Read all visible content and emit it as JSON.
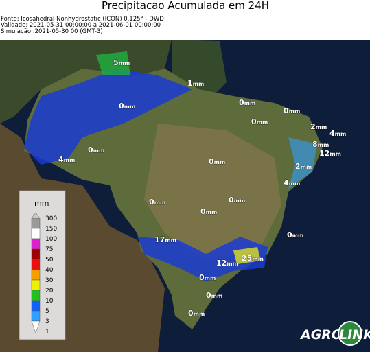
{
  "header": {
    "title": "Precipitacao Acumulada em 24H",
    "lines": [
      "Fonte: Icosahedral Nonhydrostatic (ICON) 0.125° - DWD",
      "Validade: 2021-05-31 00:00:00 a 2021-06-01 00:00:00",
      "Simulação :2021-05-30 00 (GMT-3)"
    ]
  },
  "map_labels": [
    {
      "amount": "5",
      "unit": "mm"
    },
    {
      "amount": "1",
      "unit": "mm"
    },
    {
      "amount": "0",
      "unit": "mm"
    },
    {
      "amount": "0",
      "unit": "mm"
    },
    {
      "amount": "0",
      "unit": "mm"
    },
    {
      "amount": "0",
      "unit": "mm"
    },
    {
      "amount": "2",
      "unit": "mm"
    },
    {
      "amount": "4",
      "unit": "mm"
    },
    {
      "amount": "8",
      "unit": "mm"
    },
    {
      "amount": "12",
      "unit": "mm"
    },
    {
      "amount": "0",
      "unit": "mm"
    },
    {
      "amount": "4",
      "unit": "mm"
    },
    {
      "amount": "2",
      "unit": "mm"
    },
    {
      "amount": "0",
      "unit": "mm"
    },
    {
      "amount": "4",
      "unit": "mm"
    },
    {
      "amount": "0",
      "unit": "mm"
    },
    {
      "amount": "0",
      "unit": "mm"
    },
    {
      "amount": "0",
      "unit": "mm"
    },
    {
      "amount": "0",
      "unit": "mm"
    },
    {
      "amount": "17",
      "unit": "mm"
    },
    {
      "amount": "25",
      "unit": "mm"
    },
    {
      "amount": "12",
      "unit": "mm"
    },
    {
      "amount": "0",
      "unit": "mm"
    },
    {
      "amount": "0",
      "unit": "mm"
    },
    {
      "amount": "0",
      "unit": "mm"
    }
  ],
  "legend": {
    "title": "mm",
    "ticks": [
      {
        "label": "300",
        "color": "#c8c8c8"
      },
      {
        "label": "150",
        "color": "#9a9a9a"
      },
      {
        "label": "100",
        "color": "#ffffff"
      },
      {
        "label": "75",
        "color": "#e020d0"
      },
      {
        "label": "50",
        "color": "#a00000"
      },
      {
        "label": "40",
        "color": "#e81010"
      },
      {
        "label": "30",
        "color": "#f5a000"
      },
      {
        "label": "20",
        "color": "#f0f000"
      },
      {
        "label": "10",
        "color": "#20c020"
      },
      {
        "label": "5",
        "color": "#1060ff"
      },
      {
        "label": "3",
        "color": "#30a0ff"
      },
      {
        "label": "1",
        "color": "#ffffff"
      }
    ]
  },
  "logo": {
    "word1": "AGRO",
    "word2": "LINK"
  }
}
